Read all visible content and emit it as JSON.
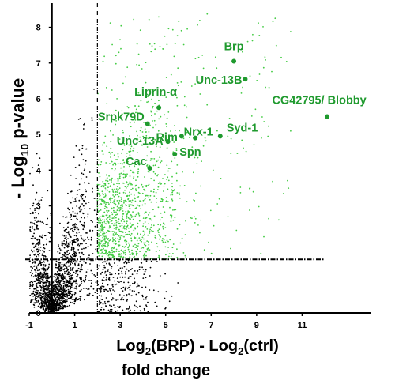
{
  "chart_data": {
    "type": "scatter",
    "title": "",
    "xlabel_line1_base": "Log",
    "xlabel_line1_sub1": "2",
    "xlabel_line1_mid": "(BRP) - Log",
    "xlabel_line1_sub2": "2",
    "xlabel_line1_end": "(ctrl)",
    "xlabel_line2": "fold change",
    "ylabel_prefix": "- Log",
    "ylabel_sub": "10",
    "ylabel_suffix": " p-value",
    "xlim": [
      -1,
      13
    ],
    "ylim": [
      0,
      8.5
    ],
    "x_ticks": [
      -1,
      1,
      3,
      5,
      7,
      9,
      11
    ],
    "y_ticks": [
      0,
      1,
      2,
      3,
      4,
      5,
      6,
      7,
      8
    ],
    "x_tick_labels": [
      "-1",
      "1",
      "3",
      "5",
      "7",
      "9",
      "11"
    ],
    "y_tick_labels": [
      "0",
      "1",
      "2",
      "3",
      "4",
      "5",
      "6",
      "7",
      "8"
    ],
    "x_threshold": 2,
    "y_threshold": 1.5,
    "grid": false,
    "colors": {
      "background_points": "#000000",
      "significant_points": "#44cc44",
      "labels": "#1f9a2e",
      "highlighted": "#1f9a2e"
    },
    "highlighted": [
      {
        "label": "Brp",
        "x": 8.0,
        "y": 7.05
      },
      {
        "label": "Unc-13B",
        "x": 8.5,
        "y": 6.55
      },
      {
        "label": "Liprin-α",
        "x": 4.7,
        "y": 5.75
      },
      {
        "label": "CG42795/ Blobby",
        "x": 12.1,
        "y": 5.5
      },
      {
        "label": "Srpk79D",
        "x": 4.2,
        "y": 5.3
      },
      {
        "label": "Syd-1",
        "x": 7.4,
        "y": 4.95
      },
      {
        "label": "Rim",
        "x": 5.7,
        "y": 4.95
      },
      {
        "label": "Nrx-1",
        "x": 6.3,
        "y": 4.9
      },
      {
        "label": "Unc-13A",
        "x": 5.1,
        "y": 4.8
      },
      {
        "label": "Spn",
        "x": 5.4,
        "y": 4.45
      },
      {
        "label": "Cac",
        "x": 4.3,
        "y": 4.05
      }
    ]
  }
}
